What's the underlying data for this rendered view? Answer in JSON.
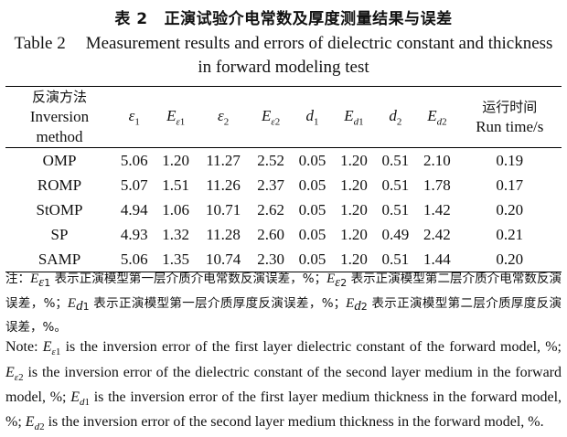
{
  "title_cn": {
    "label": "表 2",
    "text": "正演试验介电常数及厚度测量结果与误差"
  },
  "title_en": {
    "label": "Table 2",
    "text": "Measurement results and errors of dielectric constant and thickness in forward modeling test"
  },
  "table": {
    "header_method_cn": "反演方法",
    "header_method_en": "Inversion method",
    "header_runtime_cn": "运行时间",
    "header_runtime_en": "Run time/s",
    "rows": [
      {
        "method": "OMP",
        "values": [
          "5.06",
          "1.20",
          "11.27",
          "2.52",
          "0.05",
          "1.20",
          "0.51",
          "2.10",
          "0.19"
        ]
      },
      {
        "method": "ROMP",
        "values": [
          "5.07",
          "1.51",
          "11.26",
          "2.37",
          "0.05",
          "1.20",
          "0.51",
          "1.78",
          "0.17"
        ]
      },
      {
        "method": "StOMP",
        "values": [
          "4.94",
          "1.06",
          "10.71",
          "2.62",
          "0.05",
          "1.20",
          "0.51",
          "1.42",
          "0.20"
        ]
      },
      {
        "method": "SP",
        "values": [
          "4.93",
          "1.32",
          "11.28",
          "2.60",
          "0.05",
          "1.20",
          "0.49",
          "2.42",
          "0.21"
        ]
      },
      {
        "method": "SAMP",
        "values": [
          "5.06",
          "1.35",
          "10.74",
          "2.30",
          "0.05",
          "1.20",
          "0.51",
          "1.44",
          "0.20"
        ]
      }
    ]
  },
  "note_cn": {
    "prefix": "注：",
    "p1": "表示正演模型第一层介质介电常数反演误差，%；",
    "p2": "表示正演模型第二层介质介电常数反演误差，%；",
    "p3": "表示正演模型第一层介质厚度反演误差，%；",
    "p4": "表示正演模型第二层介质厚度反演误差，%。"
  },
  "note_en": {
    "prefix": "Note:",
    "p1": "is the inversion error of the first layer dielectric constant of the forward model, %;",
    "p2": "is the inversion error of the dielectric constant of the second layer medium in the forward model, %;",
    "p3": "is the inversion error of the first layer medium thickness in the forward model, %;",
    "p4": "is the inversion error of the second layer medium thickness in the forward model, %."
  }
}
